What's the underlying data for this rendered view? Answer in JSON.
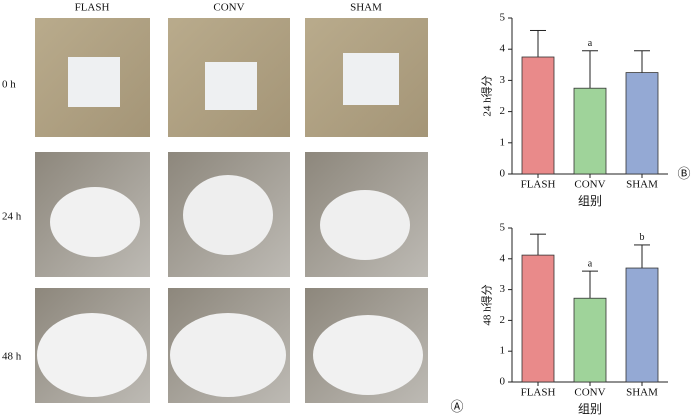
{
  "photos": {
    "columns": [
      "FLASH",
      "CONV",
      "SHAM"
    ],
    "rows": [
      "0 h",
      "24 h",
      "48 h"
    ],
    "panel_label": "Ⓐ"
  },
  "panel_label": "Ⓑ",
  "chart_data": [
    {
      "type": "bar",
      "categories": [
        "FLASH",
        "CONV",
        "SHAM"
      ],
      "values": [
        3.75,
        2.75,
        3.25
      ],
      "errors": [
        0.85,
        1.2,
        0.7
      ],
      "colors": [
        "#e98a8a",
        "#9fd39a",
        "#94a9d4"
      ],
      "ylabel": "24 h得分",
      "xlabel": "组别",
      "ylim": [
        0,
        5
      ],
      "yticks": [
        0,
        1,
        2,
        3,
        4,
        5
      ],
      "annotations": [
        {
          "category_index": 1,
          "text": "a"
        }
      ]
    },
    {
      "type": "bar",
      "categories": [
        "FLASH",
        "CONV",
        "SHAM"
      ],
      "values": [
        4.12,
        2.72,
        3.7
      ],
      "errors": [
        0.68,
        0.88,
        0.75
      ],
      "colors": [
        "#e98a8a",
        "#9fd39a",
        "#94a9d4"
      ],
      "ylabel": "48 h得分",
      "xlabel": "组别",
      "ylim": [
        0,
        5
      ],
      "yticks": [
        0,
        1,
        2,
        3,
        4,
        5
      ],
      "annotations": [
        {
          "category_index": 1,
          "text": "a"
        },
        {
          "category_index": 2,
          "text": "b"
        }
      ]
    }
  ]
}
